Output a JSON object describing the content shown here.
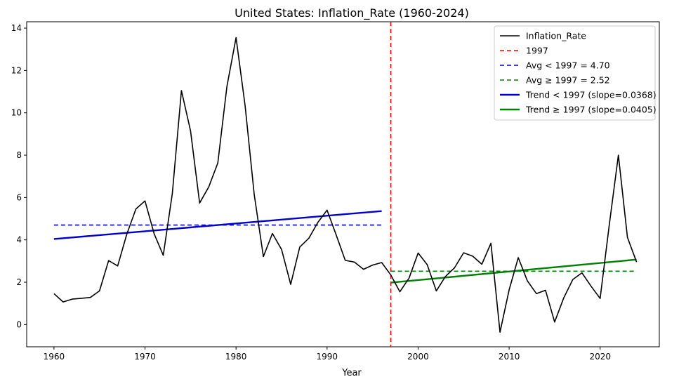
{
  "chart_data": {
    "type": "line",
    "title": "United States: Inflation_Rate (1960-2024)",
    "xlabel": "Year",
    "ylabel": "",
    "xlim": [
      1957,
      2026.5
    ],
    "ylim": [
      -1.05,
      14.3
    ],
    "xticks": [
      1960,
      1970,
      1980,
      1990,
      2000,
      2010,
      2020
    ],
    "yticks": [
      0,
      2,
      4,
      6,
      8,
      10,
      12,
      14
    ],
    "legend_position": "top-right",
    "series": [
      {
        "name": "Inflation_Rate",
        "color": "#000000",
        "x": [
          1960,
          1961,
          1962,
          1963,
          1964,
          1965,
          1966,
          1967,
          1968,
          1969,
          1970,
          1971,
          1972,
          1973,
          1974,
          1975,
          1976,
          1977,
          1978,
          1979,
          1980,
          1981,
          1982,
          1983,
          1984,
          1985,
          1986,
          1987,
          1988,
          1989,
          1990,
          1991,
          1992,
          1993,
          1994,
          1995,
          1996,
          1997,
          1998,
          1999,
          2000,
          2001,
          2002,
          2003,
          2004,
          2005,
          2006,
          2007,
          2008,
          2009,
          2010,
          2011,
          2012,
          2013,
          2014,
          2015,
          2016,
          2017,
          2018,
          2019,
          2020,
          2021,
          2022,
          2023,
          2024
        ],
        "values": [
          1.46,
          1.07,
          1.2,
          1.24,
          1.28,
          1.59,
          3.02,
          2.77,
          4.27,
          5.46,
          5.84,
          4.29,
          3.27,
          6.18,
          11.05,
          9.14,
          5.74,
          6.5,
          7.63,
          11.25,
          13.55,
          10.33,
          6.13,
          3.21,
          4.3,
          3.55,
          1.9,
          3.66,
          4.08,
          4.83,
          5.4,
          4.23,
          3.03,
          2.95,
          2.61,
          2.81,
          2.93,
          2.34,
          1.55,
          2.19,
          3.38,
          2.83,
          1.59,
          2.27,
          2.68,
          3.39,
          3.23,
          2.85,
          3.84,
          -0.36,
          1.64,
          3.16,
          2.07,
          1.46,
          1.62,
          0.12,
          1.26,
          2.13,
          2.44,
          1.81,
          1.23,
          4.7,
          8.0,
          4.12,
          2.95
        ]
      }
    ],
    "reference_lines": [
      {
        "name": "1997",
        "type": "vertical",
        "x": 1997,
        "color": "#ff0000",
        "style": "dashed"
      },
      {
        "name": "Avg < 1997 = 4.70",
        "type": "horizontal",
        "y": 4.7,
        "x_range": [
          1960,
          1996
        ],
        "color": "#0000cc",
        "style": "dashed"
      },
      {
        "name": "Avg ≥ 1997 = 2.52",
        "type": "horizontal",
        "y": 2.52,
        "x_range": [
          1997,
          2024
        ],
        "color": "#008000",
        "style": "dashed"
      },
      {
        "name": "Trend < 1997 (slope=0.0368)",
        "type": "trend",
        "x_range": [
          1960,
          1996
        ],
        "y_range": [
          4.04,
          5.36
        ],
        "color": "#0000cc",
        "style": "solid"
      },
      {
        "name": "Trend ≥ 1997 (slope=0.0405)",
        "type": "trend",
        "x_range": [
          1997,
          2024
        ],
        "y_range": [
          1.98,
          3.07
        ],
        "color": "#008000",
        "style": "solid"
      }
    ],
    "legend": [
      "Inflation_Rate",
      "1997",
      "Avg < 1997 = 4.70",
      "Avg ≥ 1997 = 2.52",
      "Trend < 1997 (slope=0.0368)",
      "Trend ≥ 1997 (slope=0.0405)"
    ]
  }
}
